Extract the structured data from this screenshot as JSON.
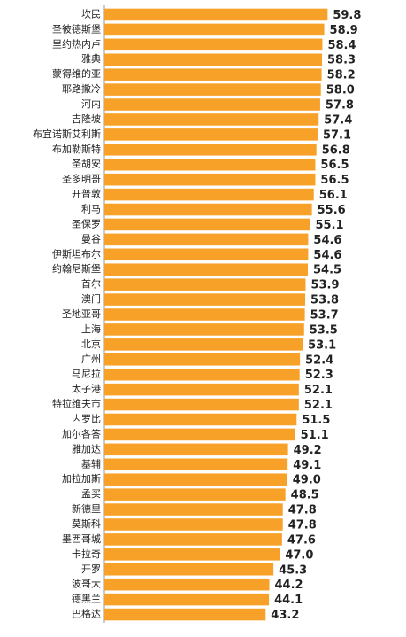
{
  "chart_data": {
    "type": "hbar",
    "color": "#f7a128",
    "categories": [
      "坎民",
      "圣彼德斯堡",
      "里约热内卢",
      "雅典",
      "蒙得维的亚",
      "耶路撒冷",
      "河内",
      "吉隆坡",
      "布宜诺斯艾利斯",
      "布加勒斯特",
      "圣胡安",
      "圣多明哥",
      "开普敦",
      "利马",
      "圣保罗",
      "曼谷",
      "伊斯坦布尔",
      "约翰尼斯堡",
      "首尔",
      "澳门",
      "圣地亚哥",
      "上海",
      "北京",
      "广州",
      "马尼拉",
      "太子港",
      "特拉维夫市",
      "内罗比",
      "加尔各答",
      "雅加达",
      "基辅",
      "加拉加斯",
      "孟买",
      "新德里",
      "莫斯科",
      "墨西哥城",
      "卡拉奇",
      "开罗",
      "波哥大",
      "德黑兰",
      "巴格达"
    ],
    "values": [
      59.8,
      58.9,
      58.4,
      58.3,
      58.2,
      58.0,
      57.8,
      57.4,
      57.1,
      56.8,
      56.5,
      56.5,
      56.1,
      55.6,
      55.1,
      54.6,
      54.6,
      54.5,
      53.9,
      53.8,
      53.7,
      53.5,
      53.1,
      52.4,
      52.3,
      52.1,
      52.1,
      51.5,
      51.1,
      49.2,
      49.1,
      49.0,
      48.5,
      47.8,
      47.8,
      47.6,
      47.0,
      45.3,
      44.2,
      44.1,
      43.2
    ],
    "value_labels": [
      "59.8",
      "58.9",
      "58.4",
      "58.3",
      "58.2",
      "58.0",
      "57.8",
      "57.4",
      "57.1",
      "56.8",
      "56.5",
      "56.5",
      "56.1",
      "55.6",
      "55.1",
      "54.6",
      "54.6",
      "54.5",
      "53.9",
      "53.8",
      "53.7",
      "53.5",
      "53.1",
      "52.4",
      "52.3",
      "52.1",
      "52.1",
      "51.5",
      "51.1",
      "49.2",
      "49.1",
      "49.0",
      "48.5",
      "47.8",
      "47.8",
      "47.6",
      "47.0",
      "45.3",
      "44.2",
      "44.1",
      "43.2"
    ]
  }
}
